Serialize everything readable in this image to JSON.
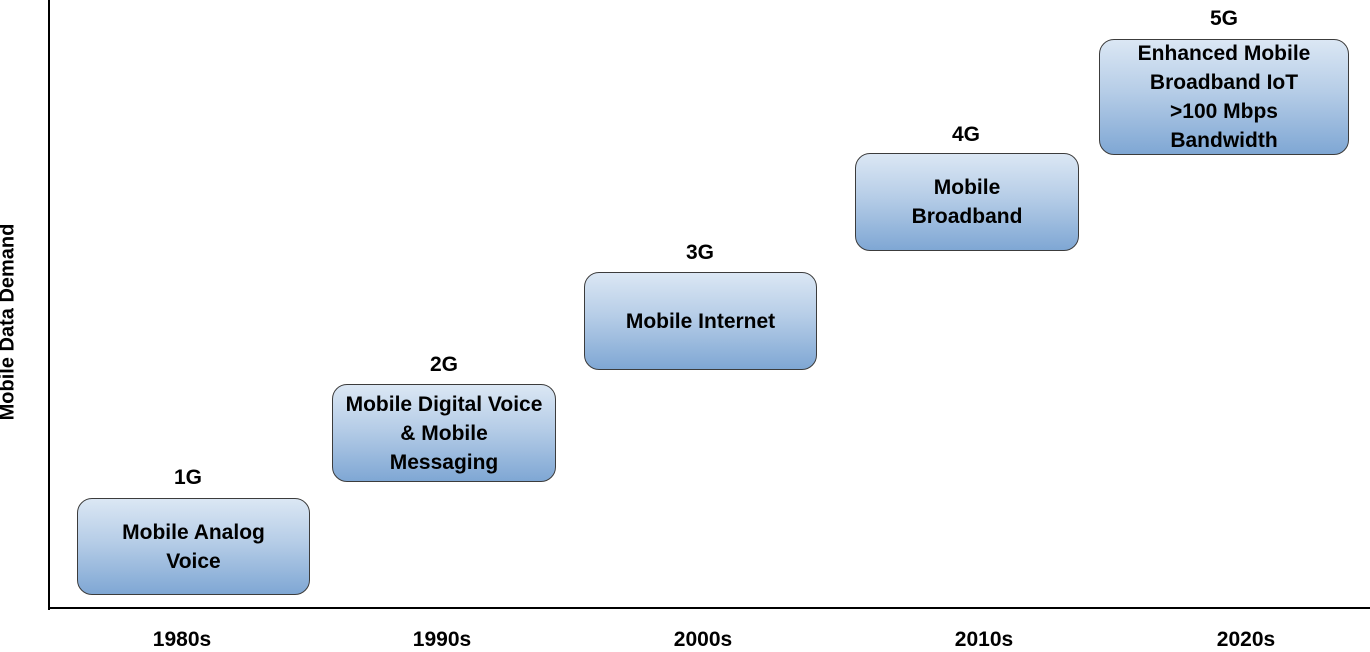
{
  "y_axis_label": "Mobile Data Demand",
  "decades": [
    "1980s",
    "1990s",
    "2000s",
    "2010s",
    "2020s"
  ],
  "generations": [
    {
      "gen": "1G",
      "description": "Mobile Analog Voice"
    },
    {
      "gen": "2G",
      "description": "Mobile Digital Voice & Mobile Messaging"
    },
    {
      "gen": "3G",
      "description": "Mobile Internet"
    },
    {
      "gen": "4G",
      "description": "Mobile Broadband"
    },
    {
      "gen": "5G",
      "description": "Enhanced Mobile Broadband IoT >100 Mbps Bandwidth"
    }
  ],
  "colors": {
    "box_top": "#dbe7f4",
    "box_bottom": "#7fa7d4",
    "box_border": "#3c3c3c",
    "axis": "#000000"
  }
}
